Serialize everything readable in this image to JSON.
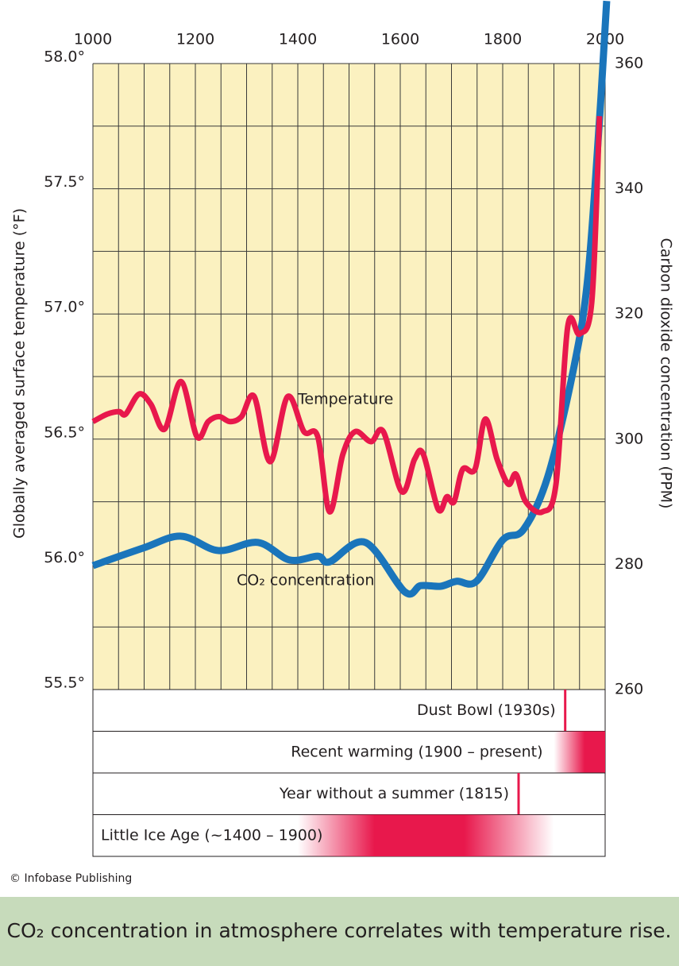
{
  "chart_data": {
    "type": "line",
    "ylabel": "Globally averaged surface temperature (°F)",
    "y2label": "Carbon dioxide concentration (PPM)",
    "xlim": [
      1000,
      2000
    ],
    "xticks": [
      1000,
      1200,
      1400,
      1600,
      1800,
      2000
    ],
    "ylim": [
      55.5,
      58
    ],
    "yticks": [
      {
        "value": 55.5,
        "label": "55.5°"
      },
      {
        "value": 56,
        "label": "56.0°"
      },
      {
        "value": 56.5,
        "label": "56.5°"
      },
      {
        "value": 57,
        "label": "57.0°"
      },
      {
        "value": 57.5,
        "label": "57.5°"
      },
      {
        "value": 58,
        "label": "58.0°"
      }
    ],
    "y2lim": [
      260,
      360
    ],
    "y2ticks": [
      260,
      280,
      300,
      320,
      340,
      360
    ],
    "grid": true,
    "series": [
      {
        "name": "Temperature",
        "color": "#e8184c",
        "axis": "y",
        "x": [
          1000,
          1028,
          1051,
          1064,
          1090,
          1113,
          1140,
          1172,
          1203,
          1225,
          1246,
          1268,
          1290,
          1315,
          1346,
          1380,
          1412,
          1439,
          1462,
          1488,
          1512,
          1543,
          1567,
          1603,
          1628,
          1645,
          1674,
          1691,
          1705,
          1722,
          1746,
          1766,
          1789,
          1811,
          1826,
          1845,
          1878,
          1904,
          1927,
          1950,
          1974,
          1989
        ],
        "values": [
          56.57,
          56.6,
          56.61,
          56.6,
          56.68,
          56.64,
          56.54,
          56.73,
          56.51,
          56.57,
          56.59,
          56.57,
          56.59,
          56.67,
          56.41,
          56.67,
          56.53,
          56.51,
          56.21,
          56.44,
          56.53,
          56.49,
          56.53,
          56.29,
          56.42,
          56.44,
          56.22,
          56.27,
          56.25,
          56.38,
          56.38,
          56.58,
          56.42,
          56.32,
          56.36,
          56.25,
          56.21,
          56.32,
          56.95,
          56.92,
          57.05,
          57.79
        ]
      },
      {
        "name": "CO₂ concentration",
        "color": "#1a75bb",
        "axis": "y2",
        "x": [
          1000,
          1098,
          1172,
          1245,
          1322,
          1384,
          1439,
          1462,
          1532,
          1609,
          1640,
          1679,
          1710,
          1749,
          1800,
          1841,
          1888,
          1938,
          1966,
          1989,
          2003
        ],
        "values": [
          279.8,
          282.6,
          284.5,
          282.2,
          283.5,
          280.7,
          281.3,
          280.4,
          283.5,
          275.6,
          276.6,
          276.5,
          277.3,
          277.3,
          283.9,
          285.6,
          294,
          311.1,
          325.7,
          351.1,
          370
        ]
      }
    ],
    "events": [
      {
        "label": "Dust Bowl (1930s)",
        "year": 1922
      },
      {
        "label": "Recent warming (1900 – present)",
        "start": 1900,
        "end": 2000
      },
      {
        "label": "Year without a summer (1815)",
        "year": 1831
      },
      {
        "label": "Little Ice Age (~1400 – 1900)",
        "start": 1400,
        "end": 1900
      }
    ],
    "credit": "© Infobase Publishing",
    "caption": "CO₂ concentration in atmosphere correlates with temperature rise."
  }
}
